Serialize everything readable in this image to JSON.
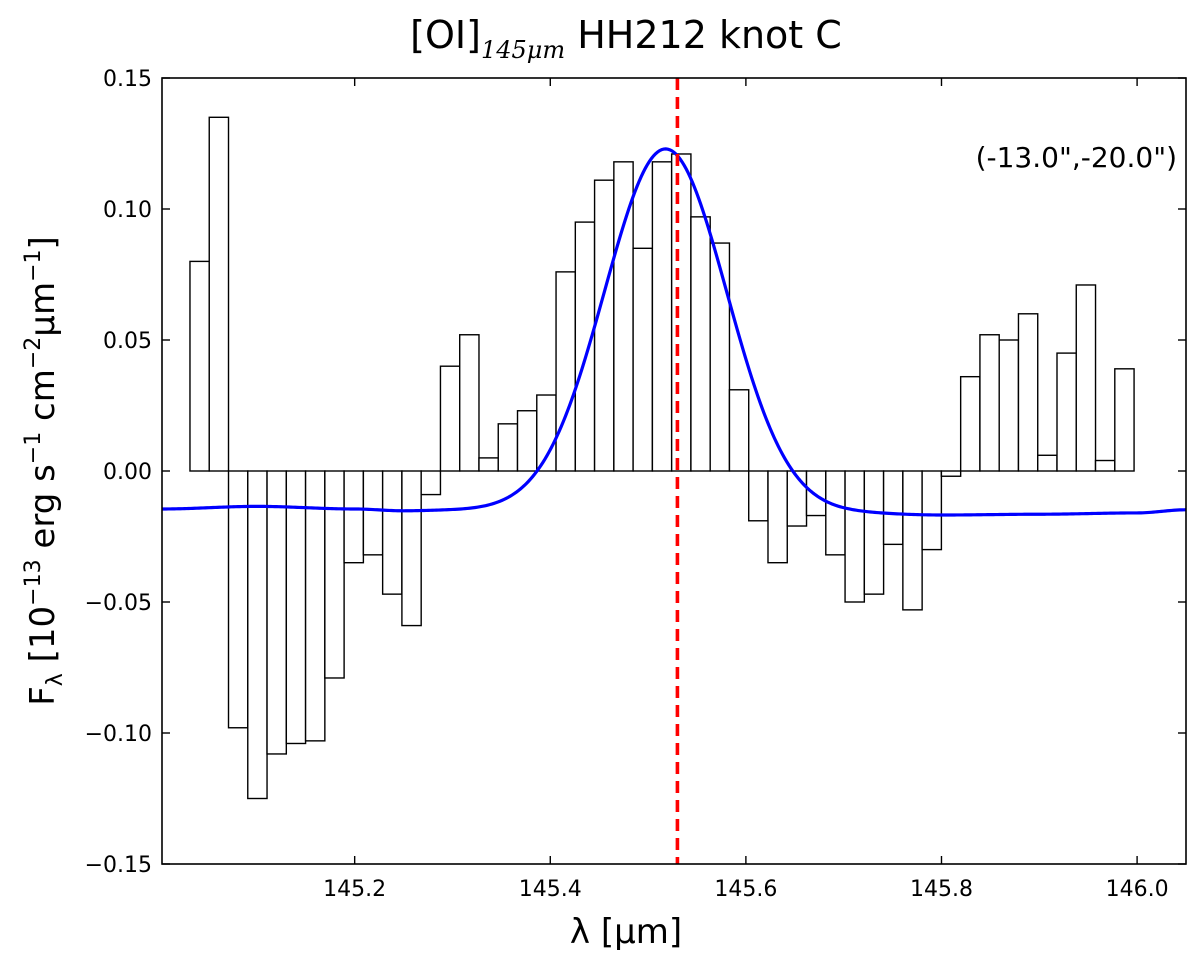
{
  "chart_data": {
    "type": "bar",
    "title": "[OI]",
    "title_subscript": "145μm",
    "title_rest": " HH212 knot C",
    "xlabel": "λ [μm]",
    "ylabel": "F",
    "ylabel_sub": "λ",
    "ylabel_rest": " [10",
    "ylabel_exp1": "−13",
    "ylabel_mid1": " erg s",
    "ylabel_exp2": "−1",
    "ylabel_mid2": " cm",
    "ylabel_exp3": "−2",
    "ylabel_mid3": "μm",
    "ylabel_exp4": "−1",
    "ylabel_end": "]",
    "annotation": "(-13.0\",-20.0\")",
    "xlim": [
      145.003,
      146.05
    ],
    "ylim": [
      -0.15,
      0.15
    ],
    "xticks": [
      145.2,
      145.4,
      145.6,
      145.8,
      146.0
    ],
    "xtick_labels": [
      "145.2",
      "145.4",
      "145.6",
      "145.8",
      "146.0"
    ],
    "yticks": [
      -0.15,
      -0.1,
      -0.05,
      0.0,
      0.05,
      0.1,
      0.15
    ],
    "ytick_labels": [
      "−0.15",
      "−0.10",
      "−0.05",
      "0.00",
      "0.05",
      "0.10",
      "0.15"
    ],
    "bin_width": 0.0197,
    "x_start": 145.0316,
    "values": [
      0.08,
      0.135,
      -0.098,
      -0.125,
      -0.108,
      -0.104,
      -0.103,
      -0.079,
      -0.035,
      -0.032,
      -0.047,
      -0.059,
      -0.009,
      0.04,
      0.052,
      0.005,
      0.018,
      0.023,
      0.029,
      0.076,
      0.095,
      0.111,
      0.118,
      0.085,
      0.118,
      0.121,
      0.097,
      0.087,
      0.031,
      -0.019,
      -0.035,
      -0.021,
      -0.017,
      -0.032,
      -0.05,
      -0.047,
      -0.028,
      -0.053,
      -0.03,
      -0.002,
      0.036,
      0.052,
      0.05,
      0.06,
      0.006,
      0.045,
      0.071,
      0.004,
      0.039
    ],
    "fit": {
      "name": "",
      "color": "#0000ff",
      "baseline_x": [
        145.003,
        145.1,
        145.2,
        145.25,
        145.3,
        145.7,
        145.8,
        145.9,
        146.0,
        146.05
      ],
      "baseline_y": [
        -0.0145,
        -0.0135,
        -0.0145,
        -0.0152,
        -0.015,
        -0.016,
        -0.0168,
        -0.0165,
        -0.016,
        -0.0148
      ],
      "amplitude": 0.1385,
      "center": 145.518,
      "sigma": 0.0625
    },
    "reference_line": {
      "x": 145.53,
      "color": "#ff0000",
      "style": "dashed"
    },
    "bar_edge_color": "#000000",
    "bar_fill_color": "#ffffff",
    "grid": false
  }
}
